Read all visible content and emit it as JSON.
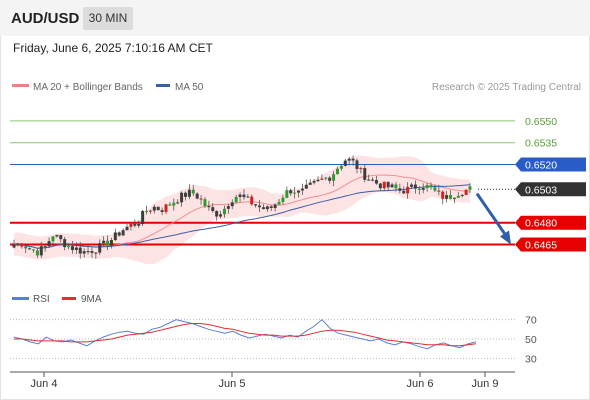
{
  "header": {
    "pair": "AUD/USD",
    "timeframe": "30 MIN",
    "datetime": "Friday, June 6, 2025 7:10:16 AM CET"
  },
  "legend": {
    "ma20_bb": "MA 20 + Bollinger Bands",
    "ma50": "MA 50",
    "credit": "Research © 2025 Trading Central",
    "rsi": "RSI",
    "rsi_ma": "9MA"
  },
  "colors": {
    "ma20": "#f08080",
    "ma50": "#3a5ea8",
    "resistance_green": "#8cc86e",
    "level_blue": "#2a5cc8",
    "support_red": "#e60000",
    "arrow": "#2f5fa8",
    "rsi": "#5b7fd6",
    "rsi_ma": "#e03030",
    "candle_dark": "#3d3d3d",
    "candle_green": "#2e9b2e",
    "candle_red": "#d62020",
    "bb_fill": "#fde0e0"
  },
  "chart_data": [
    {
      "type": "candlestick",
      "title": "AUD/USD",
      "timeframe": "30 MIN",
      "xlabel": "",
      "ylabel": "",
      "x_ticks": [
        "Jun 4",
        "Jun 5",
        "Jun 6",
        "Jun 9"
      ],
      "ylim": [
        0.6453,
        0.6563
      ],
      "y_ticks": [
        0.6465,
        0.648,
        0.6503,
        0.652,
        0.6535,
        0.655
      ],
      "price_levels": [
        {
          "value": 0.655,
          "label": "0.6550",
          "kind": "resistance"
        },
        {
          "value": 0.6535,
          "label": "0.6535",
          "kind": "resistance"
        },
        {
          "value": 0.652,
          "label": "0.6520",
          "kind": "pivot"
        },
        {
          "value": 0.6503,
          "label": "0.6503",
          "kind": "last"
        },
        {
          "value": 0.648,
          "label": "0.6480",
          "kind": "support"
        },
        {
          "value": 0.6465,
          "label": "0.6465",
          "kind": "support"
        }
      ],
      "forecast_arrow": {
        "from": 0.65,
        "to": 0.6465,
        "direction": "down"
      },
      "series": [
        {
          "name": "MA 20 + Bollinger Bands"
        },
        {
          "name": "MA 50"
        }
      ],
      "price_anchors": [
        0.6465,
        0.6466,
        0.6462,
        0.646,
        0.6463,
        0.6472,
        0.6468,
        0.6464,
        0.6462,
        0.646,
        0.6461,
        0.6463,
        0.6466,
        0.647,
        0.6475,
        0.6478,
        0.648,
        0.6488,
        0.6491,
        0.6489,
        0.6492,
        0.6496,
        0.6499,
        0.6501,
        0.6497,
        0.649,
        0.6486,
        0.6488,
        0.6496,
        0.6499,
        0.6496,
        0.6493,
        0.649,
        0.6489,
        0.6494,
        0.65,
        0.6503,
        0.65,
        0.6504,
        0.6507,
        0.651,
        0.6512,
        0.6519,
        0.6524,
        0.6521,
        0.6514,
        0.651,
        0.6507,
        0.6505,
        0.6504,
        0.6502,
        0.6503,
        0.6505,
        0.6506,
        0.6503,
        0.6499,
        0.6497,
        0.65,
        0.6502,
        0.6503
      ]
    },
    {
      "type": "line",
      "title": "RSI",
      "xlabel": "",
      "ylabel": "",
      "ylim": [
        20,
        80
      ],
      "y_ticks": [
        30,
        50,
        70
      ],
      "series": [
        {
          "name": "RSI",
          "values": [
            52,
            50,
            47,
            45,
            52,
            48,
            47,
            49,
            46,
            43,
            48,
            52,
            55,
            57,
            58,
            56,
            55,
            60,
            62,
            66,
            70,
            68,
            66,
            63,
            60,
            58,
            56,
            58,
            54,
            51,
            53,
            55,
            53,
            51,
            54,
            52,
            58,
            63,
            70,
            61,
            56,
            54,
            52,
            50,
            48,
            50,
            46,
            44,
            47,
            45,
            42,
            40,
            44,
            46,
            43,
            41,
            45,
            47
          ]
        },
        {
          "name": "9MA",
          "values": [
            50,
            50,
            49,
            48,
            48,
            48,
            48,
            47,
            47,
            47,
            48,
            49,
            50,
            52,
            54,
            55,
            56,
            57,
            59,
            61,
            63,
            65,
            66,
            66,
            65,
            63,
            61,
            60,
            58,
            56,
            55,
            54,
            54,
            53,
            53,
            53,
            54,
            56,
            58,
            59,
            59,
            58,
            57,
            55,
            53,
            51,
            49,
            48,
            47,
            46,
            45,
            44,
            44,
            44,
            43,
            43,
            44,
            45
          ]
        }
      ]
    }
  ]
}
